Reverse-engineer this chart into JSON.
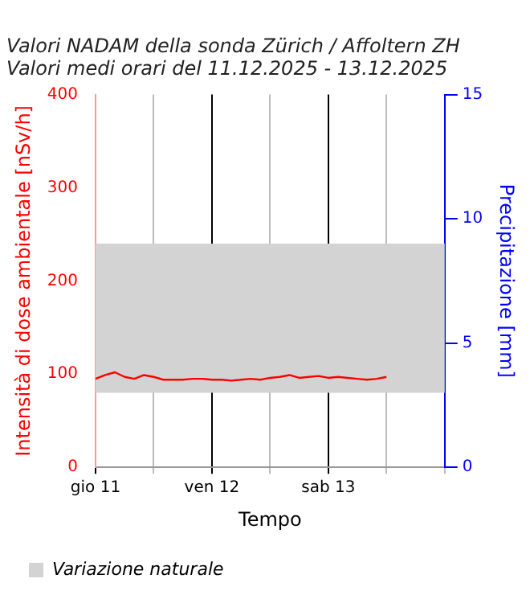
{
  "chart_data": {
    "type": "line",
    "title": [
      "Valori NADAM della sonda Zürich / Affoltern ZH",
      "Valori medi orari del 11.12.2025 - 13.12.2025"
    ],
    "xlabel": "Tempo",
    "ylabel": "Intensità di dose ambientale [nSv/h]",
    "y2label": "Precipitazione [mm]",
    "x": [
      "2025-12-11T00:00",
      "2025-12-11T02:00",
      "2025-12-11T04:00",
      "2025-12-11T06:00",
      "2025-12-11T08:00",
      "2025-12-11T10:00",
      "2025-12-11T12:00",
      "2025-12-11T14:00",
      "2025-12-11T16:00",
      "2025-12-11T18:00",
      "2025-12-11T20:00",
      "2025-12-11T22:00",
      "2025-12-12T00:00",
      "2025-12-12T02:00",
      "2025-12-12T04:00",
      "2025-12-12T06:00",
      "2025-12-12T08:00",
      "2025-12-12T10:00",
      "2025-12-12T12:00",
      "2025-12-12T14:00",
      "2025-12-12T16:00",
      "2025-12-12T18:00",
      "2025-12-12T20:00",
      "2025-12-12T22:00",
      "2025-12-13T00:00",
      "2025-12-13T02:00",
      "2025-12-13T04:00",
      "2025-12-13T06:00",
      "2025-12-13T08:00",
      "2025-12-13T10:00",
      "2025-12-13T12:00"
    ],
    "series": [
      {
        "color": "#ff0000",
        "values": [
          95,
          99,
          102,
          97,
          95,
          99,
          97,
          94,
          94,
          94,
          95,
          95,
          94,
          94,
          93,
          94,
          95,
          94,
          96,
          97,
          99,
          96,
          97,
          98,
          96,
          97,
          96,
          95,
          94,
          95,
          97
        ]
      }
    ],
    "xlim": [
      "2025-12-11T00:00",
      "2025-12-14T00:00"
    ],
    "xticks": [
      {
        "value": "2025-12-11T00:00",
        "label": "gio 11"
      },
      {
        "value": "2025-12-11T12:00",
        "label": null
      },
      {
        "value": "2025-12-12T00:00",
        "label": "ven 12"
      },
      {
        "value": "2025-12-12T12:00",
        "label": null
      },
      {
        "value": "2025-12-13T00:00",
        "label": "sab 13"
      },
      {
        "value": "2025-12-13T12:00",
        "label": null
      },
      {
        "value": "2025-12-14T00:00",
        "label": null
      }
    ],
    "ylim": [
      0,
      400
    ],
    "yticks": [
      0,
      100,
      200,
      300,
      400
    ],
    "y2lim": [
      0,
      15
    ],
    "y2ticks": [
      0,
      5,
      10,
      15
    ],
    "bands": [
      {
        "axis": "y",
        "from": 80,
        "to": 240,
        "label": "Variazione naturale",
        "color": "#d3d3d3"
      }
    ],
    "grid": "x",
    "legend": "bottom left",
    "line_style": "solid",
    "marker": "none"
  }
}
